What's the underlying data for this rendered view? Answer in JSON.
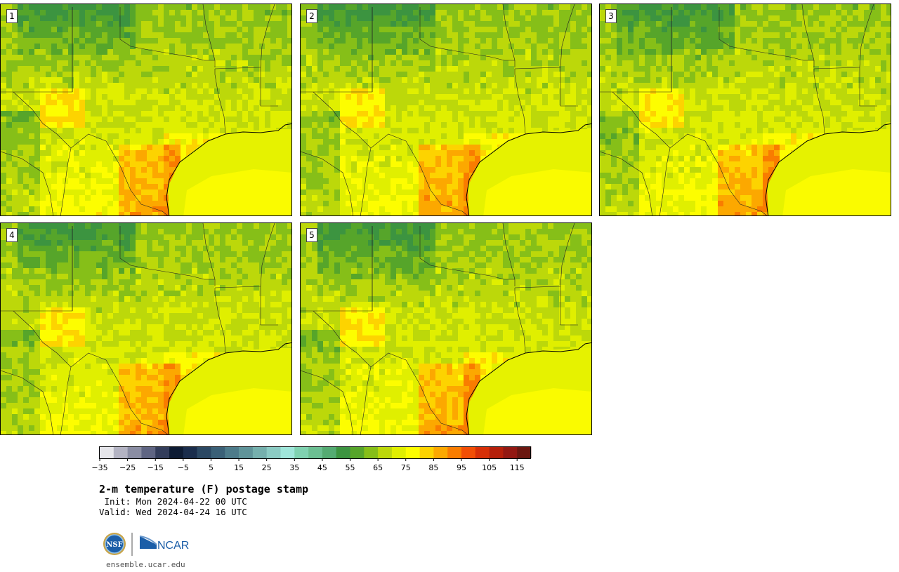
{
  "panels": [
    {
      "label": "1"
    },
    {
      "label": "2"
    },
    {
      "label": "3"
    },
    {
      "label": "4"
    },
    {
      "label": "5"
    }
  ],
  "colorbar": {
    "colors": [
      "#e5e5ea",
      "#b3b3c3",
      "#8a8da3",
      "#5f6583",
      "#333d5b",
      "#0d1b33",
      "#1a2d4c",
      "#2b4863",
      "#3a6077",
      "#4d7b8a",
      "#5f9499",
      "#75b0ad",
      "#8bcbc3",
      "#9fe6da",
      "#7fd2b0",
      "#6bbf92",
      "#54ab72",
      "#3c9440",
      "#56a52a",
      "#86bf18",
      "#bcd80a",
      "#e0ef00",
      "#fdfd00",
      "#fdd300",
      "#fca800",
      "#f97c00",
      "#f24e05",
      "#d72f07",
      "#b51f0a",
      "#931812",
      "#6b1710"
    ],
    "ticks": [
      "−35",
      "−25",
      "−15",
      "−5",
      "5",
      "15",
      "25",
      "35",
      "45",
      "55",
      "65",
      "75",
      "85",
      "95",
      "105",
      "115"
    ],
    "min": -35,
    "max": 120
  },
  "header": {
    "title": "2-m temperature (F) postage stamp",
    "init": " Init: Mon 2024-04-22 00 UTC",
    "valid": "Valid: Wed 2024-04-24 16 UTC"
  },
  "logos": {
    "nsf": "NSF",
    "ncar": "NCAR"
  },
  "footer": {
    "url": "ensemble.ucar.edu"
  }
}
